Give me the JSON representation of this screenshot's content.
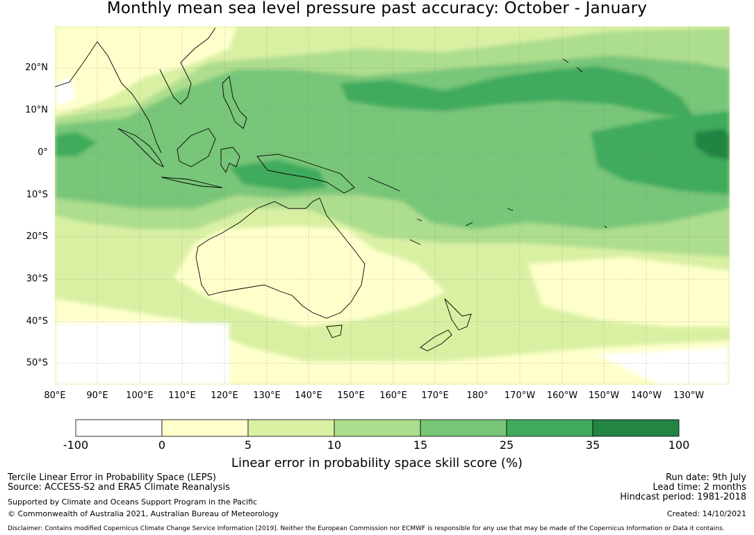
{
  "title": "Monthly mean sea level pressure past accuracy: October - January",
  "map": {
    "lat_labels": [
      "20°N",
      "10°N",
      "0°",
      "10°S",
      "20°S",
      "30°S",
      "40°S",
      "50°S"
    ],
    "lon_labels": [
      "80°E",
      "90°E",
      "100°E",
      "110°E",
      "120°E",
      "130°E",
      "140°E",
      "150°E",
      "160°E",
      "170°E",
      "180°",
      "170°W",
      "160°W",
      "150°W",
      "140°W",
      "130°W"
    ],
    "grid": true,
    "coastlines": true
  },
  "colorbar": {
    "ticks": [
      "-100",
      "0",
      "5",
      "10",
      "15",
      "25",
      "35",
      "100"
    ],
    "colors": [
      "#ffffff",
      "#ffffcc",
      "#d9f0a3",
      "#addd8e",
      "#78c679",
      "#41ab5d",
      "#238443"
    ],
    "label": "Linear error in probability space skill score (%)"
  },
  "footer": {
    "left_line1": "Tercile Linear Error in Probability Space (LEPS)",
    "left_line2": "Source: ACCESS-S2 and ERA5 Climate Reanalysis",
    "left_line3": "Supported by Climate and Oceans Support Program in the Pacific",
    "left_line4": "© Commonwealth of Australia 2021, Australian Bureau of Meteorology",
    "right_line1": "Run date: 9th July",
    "right_line2": "Lead time: 2 months",
    "right_line3": "Hindcast period: 1981-2018",
    "right_line4": "Created: 14/10/2021",
    "disclaimer": "Disclaimer: Contains modified Copernicus Climate Change Service Information [2019]. Neither the European Commission nor ECMWF is responsible for any use that may be made of the Copernicus Information or Data it contains."
  }
}
